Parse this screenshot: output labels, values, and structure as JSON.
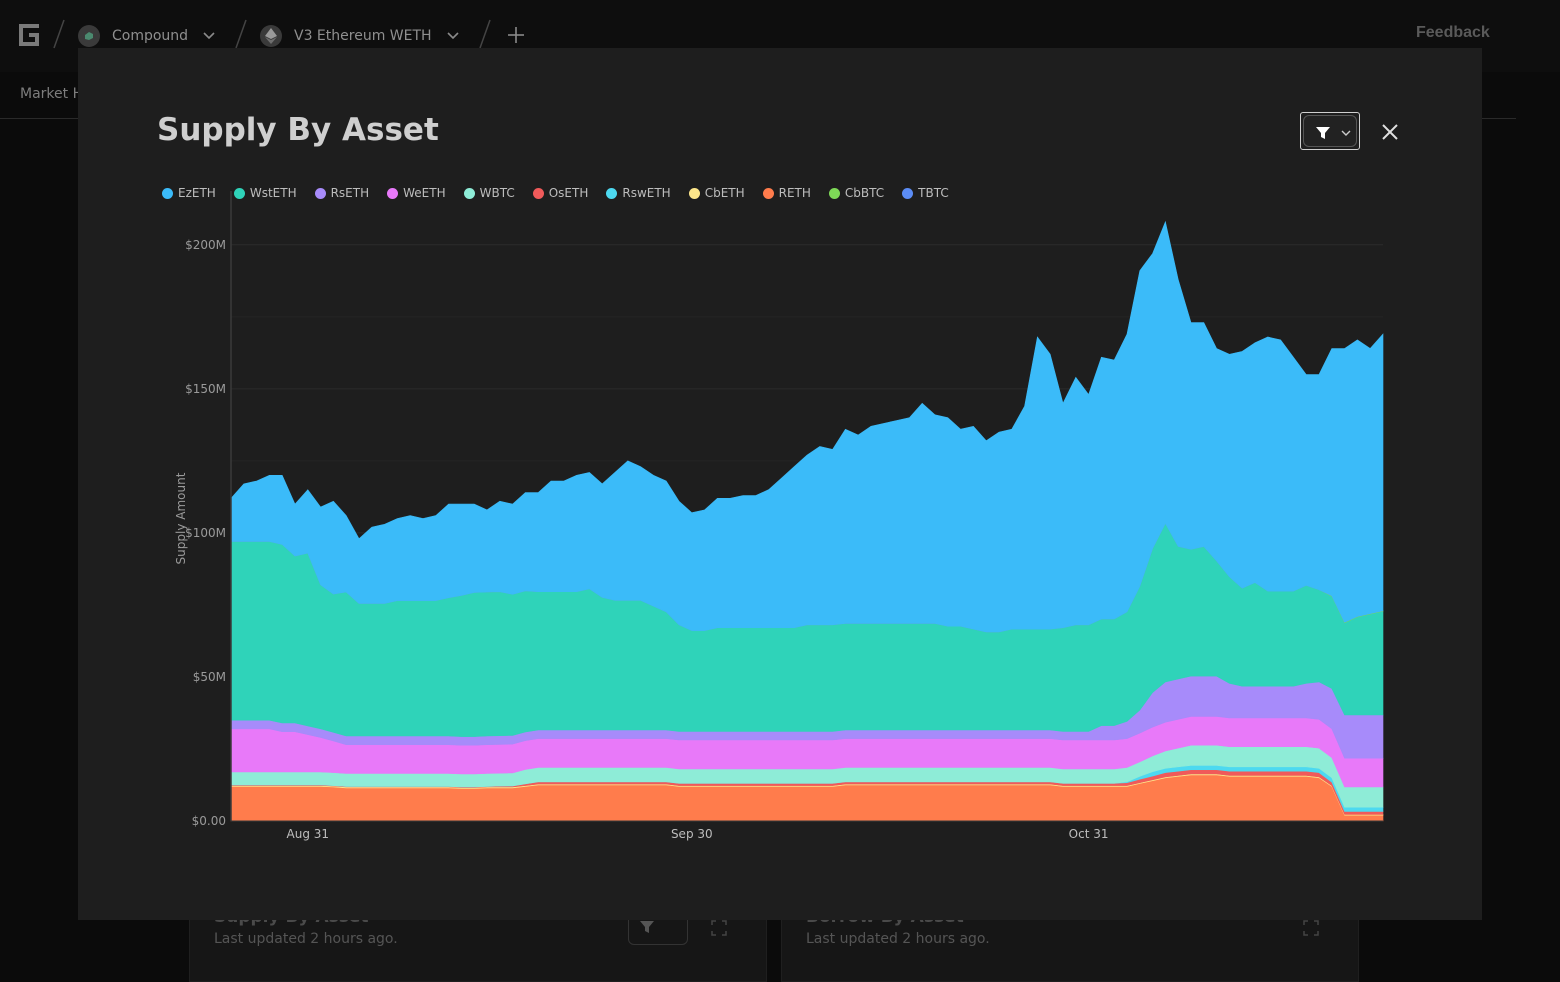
{
  "topbar": {
    "protocol": "Compound",
    "market": "V3 Ethereum WETH",
    "feedback": "Feedback"
  },
  "subnav": {
    "tab": "Market H"
  },
  "background_cards": [
    {
      "title": "Supply By Asset",
      "updated": "Last updated 2 hours ago."
    },
    {
      "title": "Borrow By Asset",
      "updated": "Last updated 2 hours ago."
    }
  ],
  "modal": {
    "title": "Supply By Asset"
  },
  "colors": {
    "EzETH": "#3bbbf9",
    "WstETH": "#2fd3b9",
    "RsETH": "#a78bfa",
    "WeETH": "#e879f9",
    "WBTC": "#8eecd7",
    "OsETH": "#f05a5a",
    "RswETH": "#4dd9f0",
    "CbETH": "#fde68a",
    "RETH": "#ff7c4c",
    "CbBTC": "#7ed957",
    "TBTC": "#5b8cf5"
  },
  "chart_data": {
    "type": "area",
    "stacked": true,
    "ylabel": "Supply Amount",
    "ylim": [
      0,
      210000000
    ],
    "yticks": [
      {
        "value": 0,
        "label": "$0.00"
      },
      {
        "value": 50000000,
        "label": "$50M"
      },
      {
        "value": 100000000,
        "label": "$100M"
      },
      {
        "value": 150000000,
        "label": "$150M"
      },
      {
        "value": 200000000,
        "label": "$200M"
      }
    ],
    "xticks": [
      {
        "index": 6,
        "label": "Aug 31"
      },
      {
        "index": 36,
        "label": "Sep 30"
      },
      {
        "index": 67,
        "label": "Oct 31"
      }
    ],
    "legend": [
      "EzETH",
      "WstETH",
      "RsETH",
      "WeETH",
      "WBTC",
      "OsETH",
      "RswETH",
      "CbETH",
      "RETH",
      "CbBTC",
      "TBTC"
    ],
    "totals_M": [
      112,
      117,
      118,
      120,
      120,
      110,
      115,
      109,
      111,
      106,
      98,
      102,
      103,
      105,
      106,
      105,
      106,
      110,
      110,
      110,
      108,
      111,
      110,
      114,
      114,
      118,
      118,
      120,
      121,
      117,
      121,
      125,
      123,
      120,
      118,
      111,
      107,
      108,
      112,
      112,
      113,
      113,
      115,
      119,
      123,
      127,
      130,
      129,
      136,
      134,
      137,
      138,
      139,
      140,
      145,
      141,
      140,
      136,
      137,
      132,
      135,
      136,
      144,
      168,
      162,
      145,
      154,
      148,
      161,
      160,
      169,
      191,
      197,
      208,
      188,
      173,
      173,
      164,
      162,
      163,
      166,
      168,
      167,
      161,
      155,
      155,
      164,
      164,
      167,
      164,
      169
    ],
    "series": [
      {
        "name": "RETH",
        "values": [
          12,
          12,
          12,
          12,
          12,
          12,
          12,
          12,
          11.8,
          11.5,
          11.5,
          11.5,
          11.5,
          11.5,
          11.5,
          11.5,
          11.5,
          11.5,
          11.3,
          11.3,
          11.5,
          11.5,
          11.5,
          12,
          12.5,
          12.5,
          12.5,
          12.5,
          12.5,
          12.5,
          12.5,
          12.5,
          12.5,
          12.5,
          12.5,
          12,
          12,
          12,
          12,
          12,
          12,
          12,
          12,
          12,
          12,
          12,
          12,
          12,
          12.5,
          12.5,
          12.5,
          12.5,
          12.5,
          12.5,
          12.5,
          12.5,
          12.5,
          12.5,
          12.5,
          12.5,
          12.5,
          12.5,
          12.5,
          12.5,
          12.5,
          12,
          12,
          12,
          12,
          12,
          12,
          13,
          14,
          15,
          15.5,
          16,
          16,
          16,
          15.5,
          15.5,
          15.5,
          15.5,
          15.5,
          15.5,
          15.5,
          15,
          12,
          2,
          2,
          2,
          2
        ]
      },
      {
        "name": "CbETH",
        "values": [
          0.3,
          0.3,
          0.3,
          0.3,
          0.3,
          0.3,
          0.3,
          0.3,
          0.3,
          0.3,
          0.3,
          0.3,
          0.3,
          0.3,
          0.3,
          0.3,
          0.3,
          0.3,
          0.3,
          0.3,
          0.3,
          0.3,
          0.3,
          0.3,
          0.3,
          0.3,
          0.3,
          0.3,
          0.3,
          0.3,
          0.3,
          0.3,
          0.3,
          0.3,
          0.3,
          0.3,
          0.3,
          0.3,
          0.3,
          0.3,
          0.3,
          0.3,
          0.3,
          0.3,
          0.3,
          0.3,
          0.3,
          0.3,
          0.3,
          0.3,
          0.3,
          0.3,
          0.3,
          0.3,
          0.3,
          0.3,
          0.3,
          0.3,
          0.3,
          0.3,
          0.3,
          0.3,
          0.3,
          0.3,
          0.3,
          0.3,
          0.3,
          0.3,
          0.3,
          0.3,
          0.3,
          0.3,
          0.3,
          0.3,
          0.3,
          0.3,
          0.3,
          0.3,
          0.3,
          0.3,
          0.3,
          0.3,
          0.3,
          0.3,
          0.3,
          0.3,
          0.3,
          0.3,
          0.3,
          0.3,
          0.3
        ]
      },
      {
        "name": "OsETH",
        "values": [
          0.2,
          0.2,
          0.2,
          0.2,
          0.2,
          0.2,
          0.2,
          0.2,
          0.2,
          0.2,
          0.2,
          0.2,
          0.2,
          0.2,
          0.2,
          0.2,
          0.2,
          0.2,
          0.2,
          0.2,
          0.2,
          0.3,
          0.4,
          0.6,
          0.8,
          0.8,
          0.8,
          0.8,
          0.8,
          0.8,
          0.8,
          0.8,
          0.8,
          0.8,
          0.8,
          0.8,
          0.8,
          0.8,
          0.8,
          0.8,
          0.8,
          0.8,
          0.8,
          0.8,
          0.8,
          0.8,
          0.8,
          0.8,
          0.8,
          0.8,
          0.8,
          0.8,
          0.8,
          0.8,
          0.8,
          0.8,
          0.8,
          0.8,
          0.8,
          0.8,
          0.8,
          0.8,
          0.8,
          0.8,
          0.8,
          0.8,
          0.8,
          0.8,
          0.8,
          0.8,
          1,
          1.2,
          1.3,
          1.5,
          1.5,
          1.5,
          1.5,
          1.5,
          1.5,
          1.5,
          1.5,
          1.5,
          1.5,
          1.5,
          1.5,
          1.5,
          1.2,
          1,
          1,
          1,
          1
        ]
      },
      {
        "name": "RswETH",
        "values": [
          0,
          0,
          0,
          0,
          0,
          0,
          0,
          0,
          0,
          0,
          0,
          0,
          0,
          0,
          0,
          0,
          0,
          0,
          0,
          0,
          0,
          0,
          0,
          0,
          0,
          0,
          0,
          0,
          0,
          0,
          0,
          0,
          0,
          0,
          0,
          0,
          0,
          0,
          0,
          0,
          0,
          0,
          0,
          0,
          0,
          0,
          0,
          0,
          0,
          0,
          0,
          0,
          0,
          0,
          0,
          0,
          0,
          0,
          0,
          0,
          0,
          0,
          0,
          0,
          0,
          0,
          0,
          0,
          0,
          0,
          0.3,
          1,
          1.5,
          1.5,
          1.5,
          1.5,
          1.5,
          1.5,
          1.5,
          1.5,
          1.5,
          1.5,
          1.5,
          1.5,
          1.5,
          1.5,
          1.5,
          1.5,
          1.5,
          1.5,
          1.5
        ]
      },
      {
        "name": "WBTC",
        "values": [
          4.5,
          4.5,
          4.5,
          4.5,
          4.5,
          4.5,
          4.5,
          4.5,
          4.5,
          4.5,
          4.5,
          4.5,
          4.5,
          4.5,
          4.5,
          4.5,
          4.5,
          4.5,
          4.5,
          4.5,
          4.5,
          4.5,
          4.5,
          5,
          5,
          5,
          5,
          5,
          5,
          5,
          5,
          5,
          5,
          5,
          5,
          5,
          5,
          5,
          5,
          5,
          5,
          5,
          5,
          5,
          5,
          5,
          5,
          5,
          5,
          5,
          5,
          5,
          5,
          5,
          5,
          5,
          5,
          5,
          5,
          5,
          5,
          5,
          5,
          5,
          5,
          5,
          5,
          5,
          5,
          5,
          5,
          5,
          5.5,
          6,
          6.5,
          7,
          7,
          7,
          7,
          7,
          7,
          7,
          7,
          7,
          7,
          7,
          7,
          7,
          7,
          7,
          7
        ]
      },
      {
        "name": "WeETH",
        "values": [
          15,
          15,
          15,
          15,
          14,
          14,
          13,
          12,
          11,
          10,
          10,
          10,
          10,
          10,
          10,
          10,
          10,
          10,
          10,
          10,
          10,
          10,
          10,
          10,
          10,
          10,
          10,
          10,
          10,
          10,
          10,
          10,
          10,
          10,
          10,
          10,
          10,
          10,
          10,
          10,
          10,
          10,
          10,
          10,
          10,
          10,
          10,
          10,
          10,
          10,
          10,
          10,
          10,
          10,
          10,
          10,
          10,
          10,
          10,
          10,
          10,
          10,
          10,
          10,
          10,
          10,
          10,
          10,
          10,
          10,
          10,
          10,
          10,
          10,
          10,
          10,
          10,
          10,
          10,
          10,
          10,
          10,
          10,
          10,
          10,
          10,
          10,
          10,
          10,
          10,
          10
        ]
      },
      {
        "name": "RsETH",
        "values": [
          3,
          3,
          3,
          3,
          3,
          3,
          3,
          3,
          3,
          3,
          3,
          3,
          3,
          3,
          3,
          3,
          3,
          3,
          3,
          3,
          3,
          3,
          3,
          3,
          3,
          3,
          3,
          3,
          3,
          3,
          3,
          3,
          3,
          3,
          3,
          3,
          3,
          3,
          3,
          3,
          3,
          3,
          3,
          3,
          3,
          3,
          3,
          3,
          3,
          3,
          3,
          3,
          3,
          3,
          3,
          3,
          3,
          3,
          3,
          3,
          3,
          3,
          3,
          3,
          3,
          3,
          3,
          3,
          5,
          5,
          6,
          8,
          12,
          14,
          14,
          14,
          14,
          14,
          12,
          11,
          11,
          11,
          11,
          11,
          12,
          13,
          14,
          15,
          15,
          15,
          15
        ]
      },
      {
        "name": "WstETH",
        "values": [
          62,
          62,
          62,
          62,
          62,
          58,
          60,
          50,
          48,
          50,
          46,
          46,
          46,
          47,
          47,
          47,
          47,
          48,
          49,
          50,
          50,
          50,
          49,
          49,
          48,
          48,
          48,
          48,
          49,
          46,
          45,
          45,
          45,
          43,
          41,
          37,
          35,
          35,
          36,
          36,
          36,
          36,
          36,
          36,
          36,
          37,
          37,
          37,
          37,
          37,
          37,
          37,
          37,
          37,
          37,
          37,
          36,
          36,
          35,
          34,
          34,
          35,
          35,
          35,
          35,
          36,
          37,
          37,
          37,
          37,
          38,
          43,
          50,
          55,
          46,
          44,
          45,
          40,
          37,
          34,
          36,
          33,
          33,
          33,
          34,
          32,
          32,
          32,
          34,
          35,
          36
        ]
      },
      {
        "name": "CbBTC",
        "values": [
          0,
          0,
          0,
          0,
          0,
          0,
          0,
          0,
          0,
          0,
          0,
          0,
          0,
          0,
          0,
          0,
          0,
          0,
          0,
          0,
          0,
          0,
          0,
          0,
          0,
          0,
          0,
          0,
          0,
          0,
          0,
          0,
          0,
          0,
          0,
          0,
          0,
          0,
          0,
          0,
          0,
          0,
          0,
          0,
          0,
          0,
          0,
          0,
          0,
          0,
          0,
          0,
          0,
          0,
          0,
          0,
          0,
          0,
          0,
          0,
          0,
          0,
          0,
          0,
          0,
          0,
          0,
          0,
          0,
          0,
          0,
          0,
          0,
          0,
          0,
          0,
          0,
          0,
          0,
          0,
          0,
          0,
          0,
          0,
          0,
          0,
          0.2,
          0.2,
          0.2,
          0.2,
          0.2
        ]
      },
      {
        "name": "TBTC",
        "values": [
          0,
          0,
          0,
          0,
          0,
          0,
          0,
          0,
          0,
          0,
          0,
          0,
          0,
          0,
          0,
          0,
          0,
          0,
          0,
          0,
          0,
          0,
          0,
          0,
          0,
          0,
          0,
          0,
          0,
          0,
          0,
          0,
          0,
          0,
          0,
          0,
          0,
          0,
          0,
          0,
          0,
          0,
          0,
          0,
          0,
          0,
          0,
          0,
          0,
          0,
          0,
          0,
          0,
          0,
          0,
          0,
          0,
          0,
          0,
          0,
          0,
          0,
          0,
          0,
          0,
          0,
          0,
          0,
          0,
          0,
          0,
          0,
          0,
          0,
          0,
          0,
          0,
          0,
          0,
          0,
          0,
          0,
          0,
          0,
          0,
          0,
          0,
          0,
          0,
          0,
          0
        ]
      }
    ],
    "top_series": "EzETH",
    "grid": true,
    "legend_position": "top-left"
  }
}
